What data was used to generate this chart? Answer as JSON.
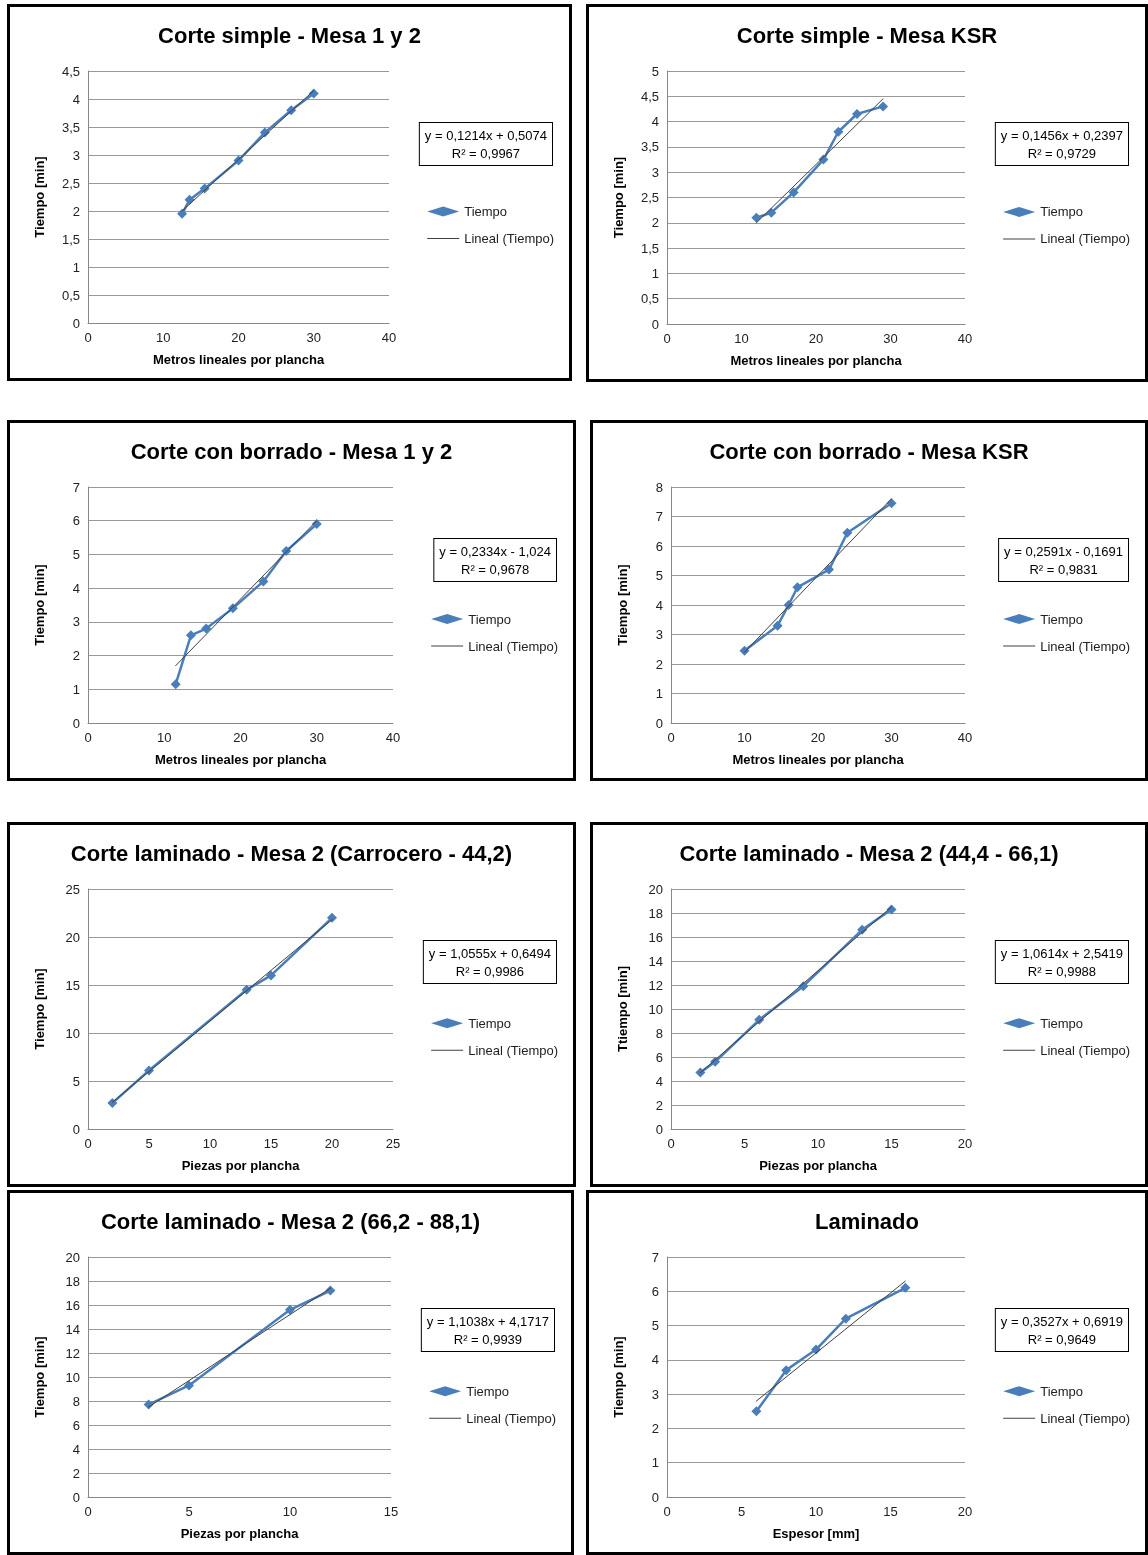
{
  "chart_data": [
    {
      "type": "line",
      "title": "Corte simple - Mesa 1 y 2",
      "xlabel": "Metros lineales por plancha",
      "ylabel": "Tiempo [min]",
      "xlim": [
        0,
        40
      ],
      "xticks": [
        0,
        10,
        20,
        30,
        40
      ],
      "ylim": [
        0,
        4.5
      ],
      "yticks": [
        0,
        {
          "value": 0.5,
          "label": "0,5"
        },
        1,
        {
          "value": 1.5,
          "label": "1,5"
        },
        2,
        {
          "value": 2.5,
          "label": "2,5"
        },
        3,
        {
          "value": 3.5,
          "label": "3,5"
        },
        4,
        {
          "value": 4.5,
          "label": "4,5"
        }
      ],
      "grid": "y",
      "legend": "right",
      "annotations": [
        "y = 0,1214x + 0,5074",
        "R² = 0,9967"
      ],
      "series": [
        {
          "name": "Tiempo",
          "color": "#4a7ebb",
          "marker": "diamond",
          "x": [
            12.5,
            13.5,
            15.5,
            20,
            23.5,
            27,
            30
          ],
          "values": [
            1.95,
            2.2,
            2.4,
            2.9,
            3.4,
            3.8,
            4.1
          ]
        },
        {
          "name": "Lineal (Tiempo)",
          "color": "#404040",
          "marker": "none",
          "x": [
            12.5,
            30
          ],
          "values": [
            2.0,
            4.15
          ]
        }
      ]
    },
    {
      "type": "line",
      "title": "Corte simple - Mesa KSR",
      "xlabel": "Metros lineales por plancha",
      "ylabel": "Tiempo [min]",
      "xlim": [
        0,
        40
      ],
      "xticks": [
        0,
        10,
        20,
        30,
        40
      ],
      "ylim": [
        0,
        5
      ],
      "yticks": [
        0,
        {
          "value": 0.5,
          "label": "0,5"
        },
        1,
        {
          "value": 1.5,
          "label": "1,5"
        },
        2,
        {
          "value": 2.5,
          "label": "2,5"
        },
        3,
        {
          "value": 3.5,
          "label": "3,5"
        },
        4,
        {
          "value": 4.5,
          "label": "4,5"
        },
        5
      ],
      "grid": "y",
      "legend": "right",
      "annotations": [
        "y = 0,1456x + 0,2397",
        "R² = 0,9729"
      ],
      "series": [
        {
          "name": "Tiempo",
          "color": "#4a7ebb",
          "marker": "diamond",
          "x": [
            12,
            14,
            17,
            21,
            23,
            25.5,
            29
          ],
          "values": [
            2.1,
            2.2,
            2.6,
            3.25,
            3.8,
            4.15,
            4.3
          ]
        },
        {
          "name": "Lineal (Tiempo)",
          "color": "#404040",
          "marker": "none",
          "x": [
            12,
            29
          ],
          "values": [
            2.0,
            4.45
          ]
        }
      ]
    },
    {
      "type": "line",
      "title": "Corte con borrado - Mesa 1 y 2",
      "xlabel": "Metros lineales por plancha",
      "ylabel": "Tiempo [min]",
      "xlim": [
        0,
        40
      ],
      "xticks": [
        0,
        10,
        20,
        30,
        40
      ],
      "ylim": [
        0,
        7
      ],
      "yticks": [
        0,
        1,
        2,
        3,
        4,
        5,
        6,
        7
      ],
      "grid": "y",
      "legend": "right",
      "annotations": [
        "y = 0,2334x - 1,024",
        "R² = 0,9678"
      ],
      "series": [
        {
          "name": "Tiempo",
          "color": "#4a7ebb",
          "marker": "diamond",
          "x": [
            11.5,
            13.5,
            15.5,
            19,
            23,
            26,
            30
          ],
          "values": [
            1.15,
            2.6,
            2.8,
            3.4,
            4.2,
            5.1,
            5.9
          ]
        },
        {
          "name": "Lineal (Tiempo)",
          "color": "#404040",
          "marker": "none",
          "x": [
            11.5,
            30
          ],
          "values": [
            1.7,
            6.0
          ]
        }
      ]
    },
    {
      "type": "line",
      "title": "Corte con borrado - Mesa KSR",
      "xlabel": "Metros lineales por plancha",
      "ylabel": "Tiempo [min]",
      "xlim": [
        0,
        40
      ],
      "xticks": [
        0,
        10,
        20,
        30,
        40
      ],
      "ylim": [
        0,
        8
      ],
      "yticks": [
        0,
        1,
        2,
        3,
        4,
        5,
        6,
        7,
        8
      ],
      "grid": "y",
      "legend": "right",
      "annotations": [
        "y = 0,2591x - 0,1691",
        "R² = 0,9831"
      ],
      "series": [
        {
          "name": "Tiempo",
          "color": "#4a7ebb",
          "marker": "diamond",
          "x": [
            10,
            14.5,
            16,
            17.2,
            21.5,
            24,
            30
          ],
          "values": [
            2.45,
            3.3,
            4.0,
            4.6,
            5.2,
            6.45,
            7.45
          ]
        },
        {
          "name": "Lineal (Tiempo)",
          "color": "#404040",
          "marker": "none",
          "x": [
            10,
            30
          ],
          "values": [
            2.4,
            7.6
          ]
        }
      ]
    },
    {
      "type": "line",
      "title": "Corte laminado - Mesa 2 (Carrocero - 44,2)",
      "xlabel": "Piezas por plancha",
      "ylabel": "Tiempo [min]",
      "xlim": [
        0,
        25
      ],
      "xticks": [
        0,
        5,
        10,
        15,
        20,
        25
      ],
      "ylim": [
        0,
        25
      ],
      "yticks": [
        0,
        5,
        10,
        15,
        20,
        25
      ],
      "grid": "y",
      "legend": "right",
      "annotations": [
        "y = 1,0555x + 0,6494",
        "R² = 0,9986"
      ],
      "series": [
        {
          "name": "Tiempo",
          "color": "#4a7ebb",
          "marker": "diamond",
          "x": [
            2,
            5,
            13,
            15,
            20
          ],
          "values": [
            2.7,
            6.1,
            14.5,
            16,
            22
          ]
        },
        {
          "name": "Lineal (Tiempo)",
          "color": "#404040",
          "marker": "none",
          "x": [
            2,
            20
          ],
          "values": [
            2.8,
            21.8
          ]
        }
      ]
    },
    {
      "type": "line",
      "title": "Corte laminado - Mesa 2 (44,4 - 66,1)",
      "xlabel": "Piezas por plancha",
      "ylabel": "Ttiempo [min]",
      "xlim": [
        0,
        20
      ],
      "xticks": [
        0,
        5,
        10,
        15,
        20
      ],
      "ylim": [
        0,
        20
      ],
      "yticks": [
        0,
        2,
        4,
        6,
        8,
        10,
        12,
        14,
        16,
        18,
        20
      ],
      "grid": "y",
      "legend": "right",
      "annotations": [
        "y = 1,0614x + 2,5419",
        "R² = 0,9988"
      ],
      "series": [
        {
          "name": "Tiempo",
          "color": "#4a7ebb",
          "marker": "diamond",
          "x": [
            2,
            3,
            6,
            9,
            13,
            15
          ],
          "values": [
            4.7,
            5.6,
            9.1,
            11.9,
            16.6,
            18.3
          ]
        },
        {
          "name": "Lineal (Tiempo)",
          "color": "#404040",
          "marker": "none",
          "x": [
            2,
            15
          ],
          "values": [
            4.7,
            18.5
          ]
        }
      ]
    },
    {
      "type": "line",
      "title": "Corte laminado - Mesa 2 (66,2 - 88,1)",
      "xlabel": "Piezas por plancha",
      "ylabel": "Tiempo [min]",
      "xlim": [
        0,
        15
      ],
      "xticks": [
        0,
        5,
        10,
        15
      ],
      "ylim": [
        0,
        20
      ],
      "yticks": [
        0,
        2,
        4,
        6,
        8,
        10,
        12,
        14,
        16,
        18,
        20
      ],
      "grid": "y",
      "legend": "right",
      "annotations": [
        "y = 1,1038x + 4,1717",
        "R² = 0,9939"
      ],
      "series": [
        {
          "name": "Tiempo",
          "color": "#4a7ebb",
          "marker": "diamond",
          "x": [
            3,
            5,
            10,
            12
          ],
          "values": [
            7.7,
            9.3,
            15.6,
            17.2
          ]
        },
        {
          "name": "Lineal (Tiempo)",
          "color": "#404040",
          "marker": "none",
          "x": [
            3,
            12
          ],
          "values": [
            7.5,
            17.4
          ]
        }
      ]
    },
    {
      "type": "line",
      "title": "Laminado",
      "xlabel": "Espesor [mm]",
      "ylabel": "Tiempo [min]",
      "xlim": [
        0,
        20
      ],
      "xticks": [
        0,
        5,
        10,
        15,
        20
      ],
      "ylim": [
        0,
        7
      ],
      "yticks": [
        0,
        1,
        2,
        3,
        4,
        5,
        6,
        7
      ],
      "grid": "y",
      "legend": "right",
      "annotations": [
        "y = 0,3527x + 0,6919",
        "R² = 0,9649"
      ],
      "series": [
        {
          "name": "Tiempo",
          "color": "#4a7ebb",
          "marker": "diamond",
          "x": [
            6,
            8,
            10,
            12,
            16
          ],
          "values": [
            2.5,
            3.7,
            4.3,
            5.2,
            6.1
          ]
        },
        {
          "name": "Lineal (Tiempo)",
          "color": "#404040",
          "marker": "none",
          "x": [
            6,
            16
          ],
          "values": [
            2.8,
            6.3
          ]
        }
      ]
    }
  ]
}
